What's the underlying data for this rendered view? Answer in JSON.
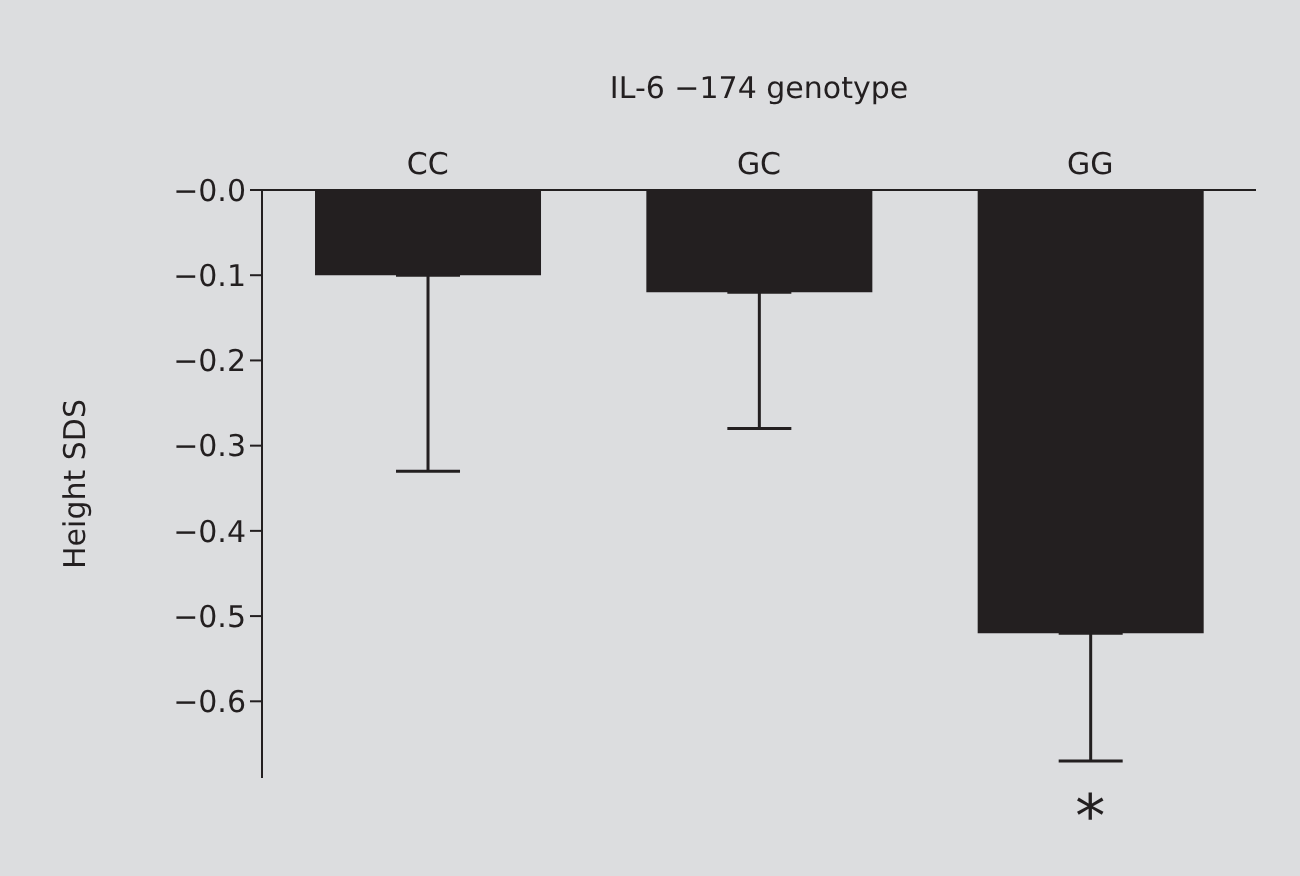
{
  "chart_data": {
    "type": "bar",
    "xlabel": "IL-6 −174 genotype",
    "ylabel": "Height SDS",
    "categories": [
      "CC",
      "GC",
      "GG"
    ],
    "values": [
      -0.1,
      -0.12,
      -0.52
    ],
    "errors": [
      [
        -0.33,
        -0.1
      ],
      [
        -0.28,
        -0.12
      ],
      [
        -0.67,
        -0.52
      ]
    ],
    "color": "#231f20",
    "ylim": [
      -0.69,
      0
    ],
    "yticks": [
      {
        "value": 0,
        "label": "−0.0"
      },
      {
        "value": -0.1,
        "label": "−0.1"
      },
      {
        "value": -0.2,
        "label": "−0.2"
      },
      {
        "value": -0.3,
        "label": "−0.3"
      },
      {
        "value": -0.4,
        "label": "−0.4"
      },
      {
        "value": -0.5,
        "label": "−0.5"
      },
      {
        "value": -0.6,
        "label": "−0.6"
      }
    ],
    "annotations": [
      "*"
    ],
    "grid": false,
    "legend": false
  }
}
